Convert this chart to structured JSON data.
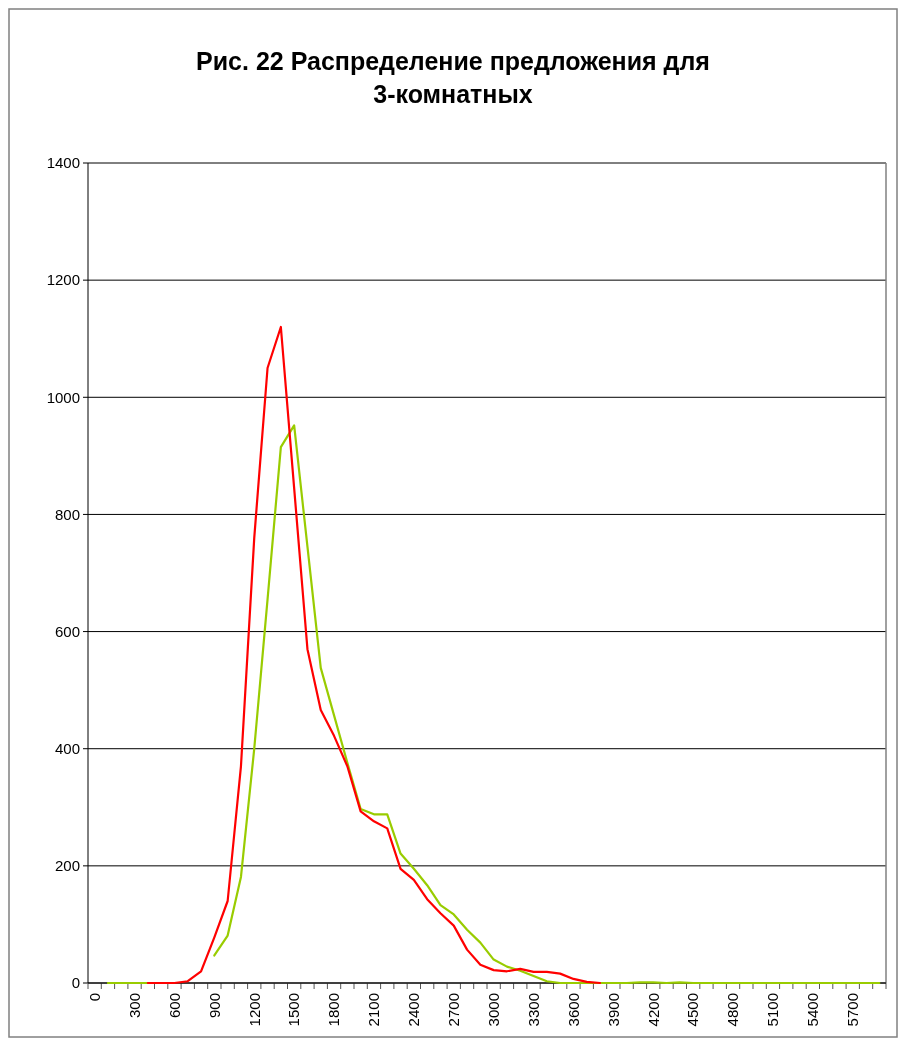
{
  "chart_data": {
    "type": "line",
    "title": "Рис. 22 Распределение предложения для 3-комнатных",
    "categories": [
      "0",
      null,
      null,
      "300",
      null,
      null,
      "600",
      null,
      null,
      "900",
      null,
      null,
      "1200",
      null,
      null,
      "1500",
      null,
      null,
      "1800",
      null,
      null,
      "2100",
      null,
      null,
      "2400",
      null,
      null,
      "2700",
      null,
      null,
      "3000",
      null,
      null,
      "3300",
      null,
      null,
      "3600",
      null,
      null,
      "3900",
      null,
      null,
      "4200",
      null,
      null,
      "4500",
      null,
      null,
      "4800",
      null,
      null,
      "5100",
      null,
      null,
      "5400",
      null,
      null,
      "5700",
      null,
      null
    ],
    "series": [
      {
        "color": "#ff0000",
        "values": [
          null,
          null,
          null,
          null,
          0,
          0,
          0,
          3,
          20,
          78,
          140,
          370,
          760,
          1050,
          1120,
          845,
          570,
          466,
          422,
          370,
          293,
          276,
          264,
          195,
          176,
          143,
          119,
          98,
          57,
          31,
          22,
          20,
          24,
          19,
          19,
          16,
          7,
          2,
          0,
          null,
          null,
          null,
          null,
          null,
          null,
          null,
          null,
          null,
          null,
          null,
          null,
          null,
          null,
          null,
          null,
          null,
          null,
          null,
          null,
          null
        ]
      },
      {
        "color": "#99cc00",
        "values": [
          null,
          0,
          0,
          0,
          0,
          null,
          null,
          null,
          null,
          47,
          81,
          181,
          400,
          655,
          915,
          952,
          745,
          538,
          457,
          376,
          297,
          288,
          288,
          221,
          195,
          167,
          133,
          117,
          91,
          69,
          40,
          28,
          21,
          12,
          3,
          0,
          0,
          0,
          0,
          0,
          0,
          1,
          1,
          0,
          1,
          0,
          0,
          0,
          0,
          0,
          0,
          0,
          0,
          0,
          0,
          0,
          0,
          0,
          0,
          0
        ]
      }
    ],
    "ylim": [
      0,
      1400
    ],
    "yticks": [
      0,
      200,
      400,
      600,
      800,
      1000,
      1200,
      1400
    ],
    "grid": "y"
  }
}
